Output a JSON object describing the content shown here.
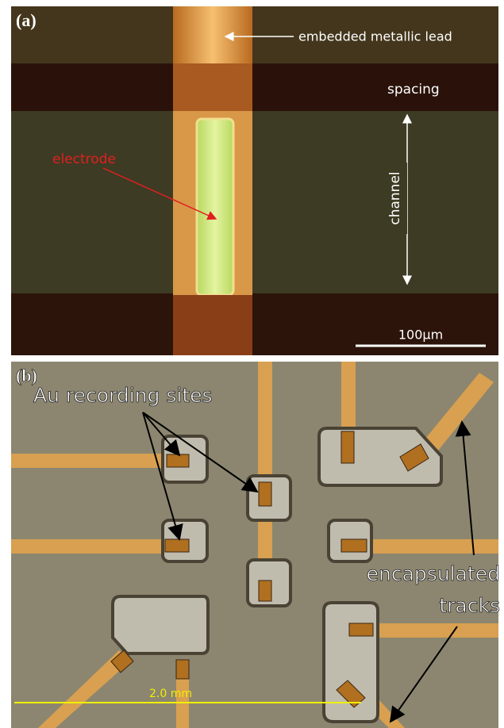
{
  "panel_a": {
    "label": "(a)",
    "annotations": {
      "lead": "embedded metallic lead",
      "spacing": "spacing",
      "channel": "channel",
      "electrode": "electrode"
    },
    "scale_bar": "100µm"
  },
  "panel_b": {
    "label": "(b)",
    "annotations": {
      "sites": "Au recording sites",
      "encapsulated_1": "encapsulated",
      "encapsulated_2": "tracks"
    },
    "scale_bar": "2.0 mm"
  }
}
